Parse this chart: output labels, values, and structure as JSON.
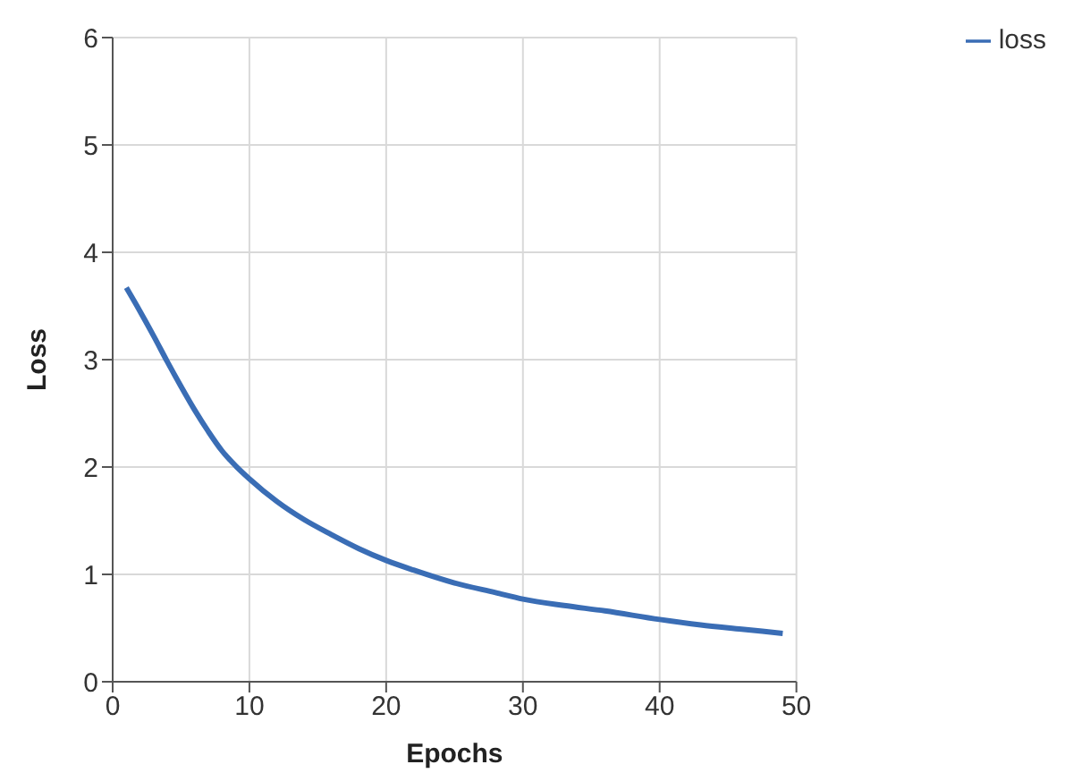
{
  "chart_data": {
    "type": "line",
    "xlabel": "Epochs",
    "ylabel": "Loss",
    "x": [
      1,
      2,
      3,
      4,
      5,
      6,
      7,
      8,
      9,
      10,
      12,
      14,
      16,
      18,
      20,
      22,
      25,
      28,
      30,
      33,
      36,
      40,
      43,
      46,
      49
    ],
    "series": [
      {
        "name": "loss",
        "color": "#3a6db5",
        "values": [
          3.67,
          3.45,
          3.22,
          2.98,
          2.75,
          2.53,
          2.33,
          2.15,
          2.01,
          1.89,
          1.68,
          1.51,
          1.37,
          1.24,
          1.13,
          1.04,
          0.92,
          0.83,
          0.77,
          0.71,
          0.66,
          0.58,
          0.53,
          0.49,
          0.45
        ]
      }
    ],
    "xlim": [
      0,
      50
    ],
    "xticks": [
      0,
      10,
      20,
      30,
      40,
      50
    ],
    "ylim": [
      0,
      6
    ],
    "yticks": [
      0,
      1,
      2,
      3,
      4,
      5,
      6
    ],
    "grid": true,
    "legend": "top right",
    "marker": "none",
    "line_style": "solid"
  }
}
